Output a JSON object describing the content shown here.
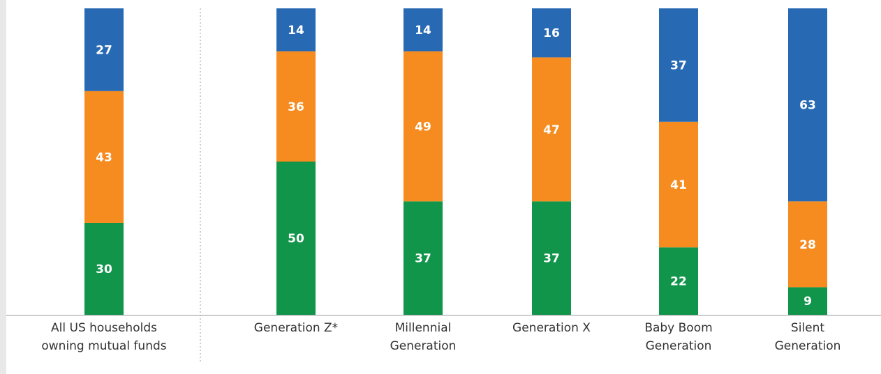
{
  "chart_data": {
    "type": "bar",
    "stacked": true,
    "categories": [
      [
        "All US households",
        "owning mutual funds"
      ],
      [
        "Generation Z*"
      ],
      [
        "Millennial",
        "Generation"
      ],
      [
        "Generation X"
      ],
      [
        "Baby Boom",
        "Generation"
      ],
      [
        "Silent",
        "Generation"
      ]
    ],
    "series": [
      {
        "color": "#10954a",
        "values": [
          30,
          50,
          37,
          37,
          22,
          9
        ]
      },
      {
        "color": "#f68b1f",
        "values": [
          43,
          36,
          49,
          47,
          41,
          28
        ]
      },
      {
        "color": "#2769b3",
        "values": [
          27,
          14,
          14,
          16,
          37,
          63
        ]
      }
    ],
    "ylim": [
      0,
      100
    ],
    "grid": false,
    "legend": "none",
    "separator_after_category": 0
  }
}
